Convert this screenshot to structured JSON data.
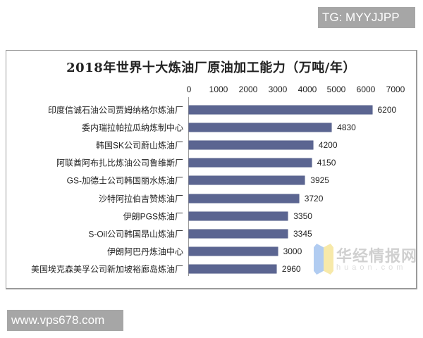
{
  "badges": {
    "top_right": "TG: MYYJJPP",
    "bottom_left": "www.vps678.com"
  },
  "watermark": {
    "cn": "华经情报网",
    "en": "huaon.com"
  },
  "chart_data": {
    "type": "bar",
    "orientation": "horizontal",
    "title": "2018年世界十大炼油厂原油加工能力（万吨/年）",
    "xlabel": "",
    "ylabel": "",
    "xlim": [
      0,
      7000
    ],
    "x_ticks": [
      "0",
      "1000",
      "2000",
      "3000",
      "4000",
      "5000",
      "6000",
      "7000"
    ],
    "x_axis_position": "top",
    "grid": false,
    "legend": "none",
    "bar_color": "#5b6591",
    "data_labels": true,
    "categories": [
      "印度信诚石油公司贾姆纳格尔炼油厂",
      "委内瑞拉帕拉瓜纳炼制中心",
      "韩国SK公司蔚山炼油厂",
      "阿联酋阿布扎比炼油公司鲁维斯厂",
      "GS-加德士公司韩国丽水炼油厂",
      "沙特阿拉伯吉赞炼油厂",
      "伊朗PGS炼油厂",
      "S-Oil公司韩国昂山炼油厂",
      "伊朗阿巴丹炼油中心",
      "美国埃克森美孚公司新加坡裕廊岛炼油厂"
    ],
    "values": [
      6200,
      4830,
      4200,
      4150,
      3925,
      3720,
      3350,
      3345,
      3000,
      2960
    ],
    "value_labels": [
      "6200",
      "4830",
      "4200",
      "4150",
      "3925",
      "3720",
      "3350",
      "3345",
      "3000",
      "2960"
    ]
  }
}
